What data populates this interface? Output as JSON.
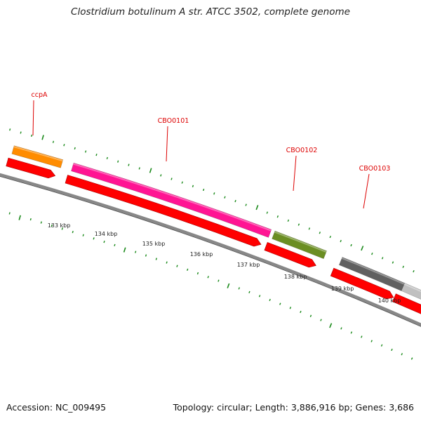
{
  "title": "Clostridium botulinum A str. ATCC 3502, complete genome",
  "footer": {
    "accession": "Accession: NC_009495",
    "topology": "Topology: circular; Length: 3,886,916 bp; Genes: 3,686"
  },
  "colors": {
    "backbone": "#888888",
    "cds_arrow": "#ff0000",
    "ticks": "#1a8a1a",
    "label": "#dd0000",
    "ccpA": "#ff8c00",
    "CBO0101": "#ff1493",
    "CBO0102": "#6b8e23",
    "CBO0103": "#606060",
    "next_gene": "#c0c0c0"
  },
  "scale_labels": [
    "133 kbp",
    "134 kbp",
    "135 kbp",
    "136 kbp",
    "137 kbp",
    "138 kbp",
    "139 kbp",
    "140 kbp"
  ],
  "genes": [
    {
      "name": "ccpA",
      "color_key": "ccpA"
    },
    {
      "name": "CBO0101",
      "color_key": "CBO0101"
    },
    {
      "name": "CBO0102",
      "color_key": "CBO0102"
    },
    {
      "name": "CBO0103",
      "color_key": "CBO0103"
    },
    {
      "name": "",
      "color_key": "next_gene"
    }
  ]
}
